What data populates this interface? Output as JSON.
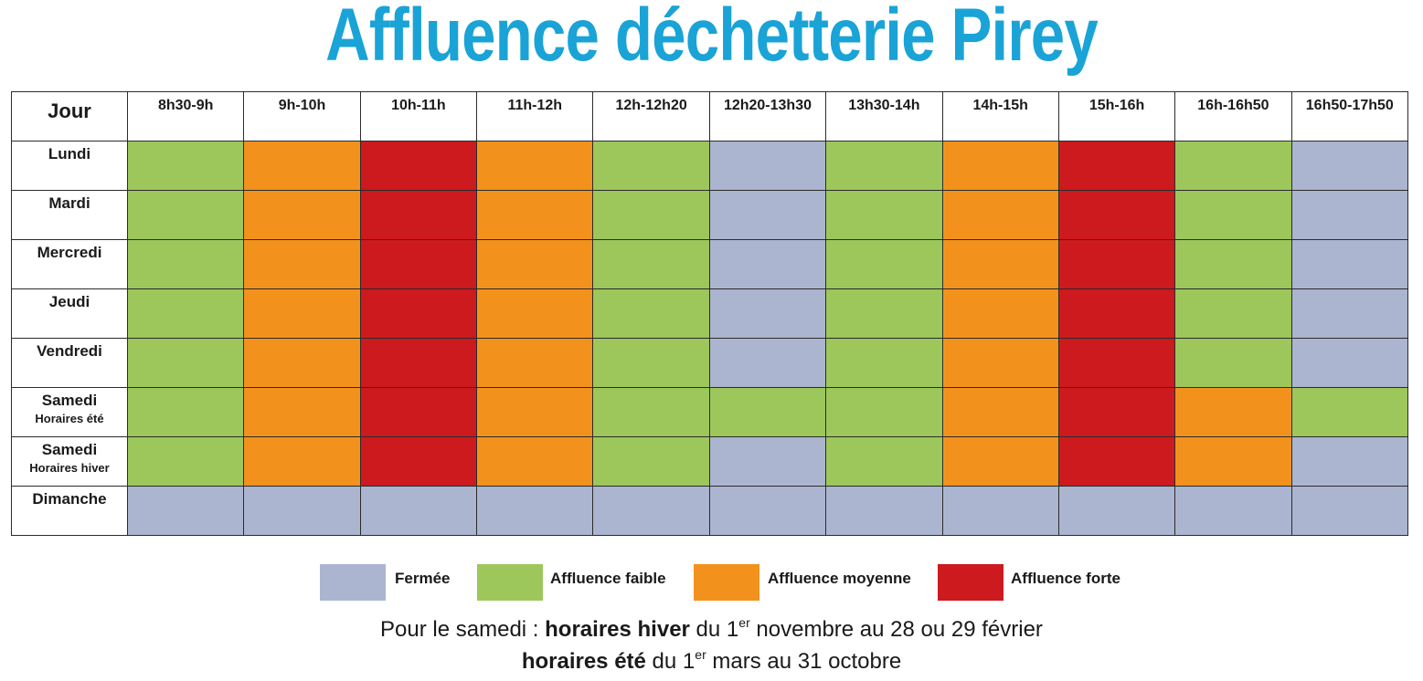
{
  "title": "Affluence déchetterie Pirey",
  "colors": {
    "closed": "#abb5cf",
    "low": "#9dc75b",
    "medium": "#f2921d",
    "high": "#cc1a1e",
    "title": "#1aa3d6"
  },
  "chart_data": {
    "type": "heatmap",
    "title": "Affluence déchetterie Pirey",
    "corner_label": "Jour",
    "columns": [
      "8h30-9h",
      "9h-10h",
      "10h-11h",
      "11h-12h",
      "12h-12h20",
      "12h20-13h30",
      "13h30-14h",
      "14h-15h",
      "15h-16h",
      "16h-16h50",
      "16h50-17h50"
    ],
    "rows": [
      {
        "label": "Lundi",
        "sublabel": "",
        "values": [
          "low",
          "medium",
          "high",
          "medium",
          "low",
          "closed",
          "low",
          "medium",
          "high",
          "low",
          "closed"
        ]
      },
      {
        "label": "Mardi",
        "sublabel": "",
        "values": [
          "low",
          "medium",
          "high",
          "medium",
          "low",
          "closed",
          "low",
          "medium",
          "high",
          "low",
          "closed"
        ]
      },
      {
        "label": "Mercredi",
        "sublabel": "",
        "values": [
          "low",
          "medium",
          "high",
          "medium",
          "low",
          "closed",
          "low",
          "medium",
          "high",
          "low",
          "closed"
        ]
      },
      {
        "label": "Jeudi",
        "sublabel": "",
        "values": [
          "low",
          "medium",
          "high",
          "medium",
          "low",
          "closed",
          "low",
          "medium",
          "high",
          "low",
          "closed"
        ]
      },
      {
        "label": "Vendredi",
        "sublabel": "",
        "values": [
          "low",
          "medium",
          "high",
          "medium",
          "low",
          "closed",
          "low",
          "medium",
          "high",
          "low",
          "closed"
        ]
      },
      {
        "label": "Samedi",
        "sublabel": "Horaires été",
        "values": [
          "low",
          "medium",
          "high",
          "medium",
          "low",
          "low",
          "low",
          "medium",
          "high",
          "medium",
          "low"
        ]
      },
      {
        "label": "Samedi",
        "sublabel": "Horaires hiver",
        "values": [
          "low",
          "medium",
          "high",
          "medium",
          "low",
          "closed",
          "low",
          "medium",
          "high",
          "medium",
          "closed"
        ]
      },
      {
        "label": "Dimanche",
        "sublabel": "",
        "values": [
          "closed",
          "closed",
          "closed",
          "closed",
          "closed",
          "closed",
          "closed",
          "closed",
          "closed",
          "closed",
          "closed"
        ]
      }
    ],
    "legend": [
      {
        "key": "closed",
        "label": "Fermée"
      },
      {
        "key": "low",
        "label": "Affluence faible"
      },
      {
        "key": "medium",
        "label": "Affluence moyenne"
      },
      {
        "key": "high",
        "label": "Affluence forte"
      }
    ]
  },
  "notes": {
    "line1": {
      "prefix": "Pour le samedi : ",
      "bold": "horaires hiver",
      "middle": " du 1",
      "sup": "er",
      "suffix": " novembre au 28 ou 29 février"
    },
    "line2": {
      "bold": "horaires été",
      "middle": " du 1",
      "sup": "er",
      "suffix": " mars au 31 octobre"
    }
  }
}
